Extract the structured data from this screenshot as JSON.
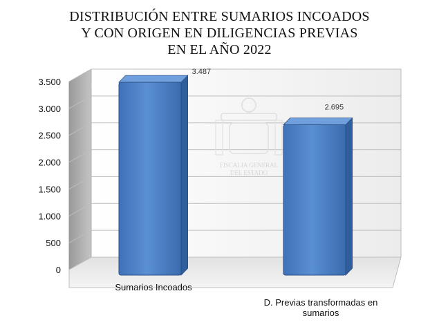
{
  "title_lines": [
    "DISTRIBUCIÓN ENTRE SUMARIOS INCOADOS",
    "Y CON ORIGEN EN DILIGENCIAS PREVIAS",
    "EN EL AÑO 2022"
  ],
  "watermark": {
    "lines": [
      "FISCALIA GENERAL",
      "DEL ESTADO"
    ]
  },
  "chart_data": {
    "type": "bar",
    "title": "DISTRIBUCIÓN ENTRE SUMARIOS INCOADOS Y CON ORIGEN EN DILIGENCIAS PREVIAS EN EL AÑO 2022",
    "categories": [
      "Sumarios Incoados",
      "D. Previas transformadas en sumarios"
    ],
    "category_label_lines": [
      [
        "Sumarios Incoados"
      ],
      [
        "D. Previas transformadas en",
        "sumarios"
      ]
    ],
    "values": [
      3487,
      2695
    ],
    "value_labels": [
      "3.487",
      "2.695"
    ],
    "ylim": [
      0,
      3500
    ],
    "yticks": [
      0,
      500,
      1000,
      1500,
      2000,
      2500,
      3000,
      3500
    ],
    "ytick_labels": [
      "0",
      "500",
      "1.000",
      "1.500",
      "2.000",
      "2.500",
      "3.000",
      "3.500"
    ],
    "xlabel": "",
    "ylabel": "",
    "grid": true,
    "legend": false,
    "style": "3d",
    "colors": {
      "bar_front": "#4a7ec2",
      "bar_side": "#2f5e9c",
      "bar_top": "#6f9fdc",
      "bar_edge": "#2a4f86",
      "wall": "#e6e6e6",
      "floor": "#d9d9d9",
      "gridline": "#bdbdbd"
    }
  }
}
